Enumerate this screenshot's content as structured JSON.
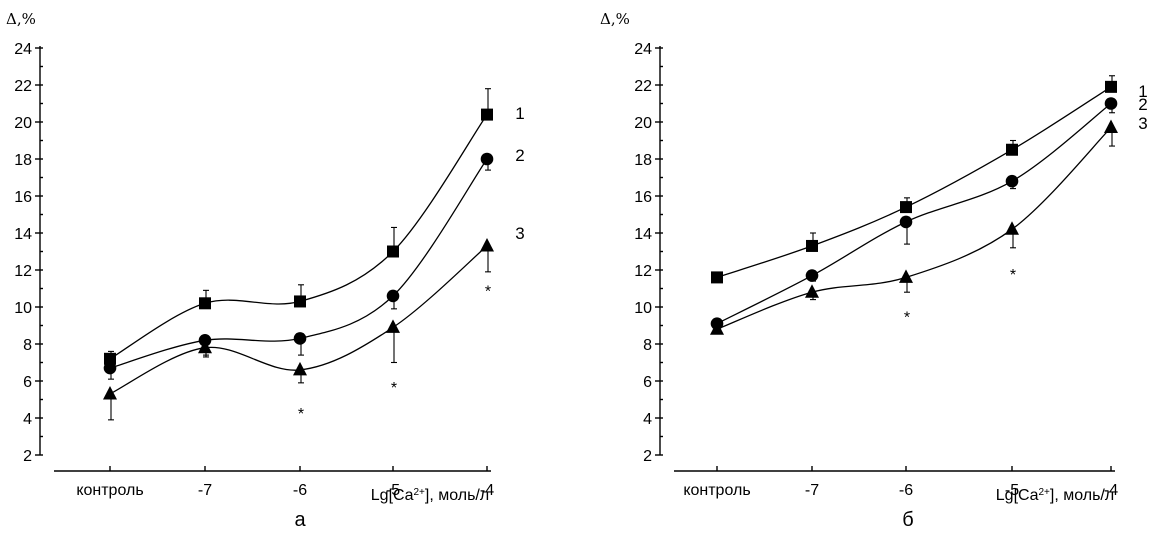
{
  "chart_data": [
    {
      "type": "line",
      "panel_label": "а",
      "ylabel": "Δ,%",
      "xlabel": "Lg[Ca²⁺], моль/л",
      "categories": [
        "контроль",
        "-7",
        "-6",
        "-5",
        "-4"
      ],
      "yticks": [
        2,
        4,
        6,
        8,
        10,
        12,
        14,
        16,
        18,
        20,
        22,
        24
      ],
      "ylim": [
        2,
        24
      ],
      "grid": false,
      "series": [
        {
          "name": "1",
          "marker": "square",
          "values": [
            7.2,
            10.2,
            10.3,
            13.0,
            20.4
          ],
          "errors": [
            0.4,
            0.7,
            0.9,
            1.3,
            1.4
          ]
        },
        {
          "name": "2",
          "marker": "circle",
          "values": [
            6.7,
            8.2,
            8.3,
            10.6,
            18.0
          ],
          "errors": [
            0.6,
            0.8,
            0.9,
            0.7,
            0.6
          ]
        },
        {
          "name": "3",
          "marker": "triangle",
          "values": [
            5.3,
            7.8,
            6.6,
            8.9,
            13.3
          ],
          "errors": [
            1.4,
            0.5,
            0.7,
            1.9,
            1.4
          ]
        }
      ],
      "significance": [
        {
          "category": "-6",
          "label": "*",
          "y": 4.5
        },
        {
          "category": "-5",
          "label": "*",
          "y": 5.9
        },
        {
          "category": "-4",
          "label": "*",
          "y": 11.1
        }
      ]
    },
    {
      "type": "line",
      "panel_label": "б",
      "ylabel": "Δ,%",
      "xlabel": "Lg[Ca²⁺], моль/л",
      "categories": [
        "контроль",
        "-7",
        "-6",
        "-5",
        "-4"
      ],
      "yticks": [
        2,
        4,
        6,
        8,
        10,
        12,
        14,
        16,
        18,
        20,
        22,
        24
      ],
      "ylim": [
        2,
        24
      ],
      "grid": false,
      "series": [
        {
          "name": "1",
          "marker": "square",
          "values": [
            11.6,
            13.3,
            15.4,
            18.5,
            21.9
          ],
          "errors": [
            0.2,
            0.7,
            0.5,
            0.5,
            0.6
          ]
        },
        {
          "name": "2",
          "marker": "circle",
          "values": [
            9.1,
            11.7,
            14.6,
            16.8,
            21.0
          ],
          "errors": [
            0.2,
            0.3,
            1.2,
            0.4,
            0.5
          ]
        },
        {
          "name": "3",
          "marker": "triangle",
          "values": [
            8.8,
            10.8,
            11.6,
            14.2,
            19.7
          ],
          "errors": [
            0.2,
            0.4,
            0.8,
            1.0,
            1.0
          ]
        }
      ],
      "significance": [
        {
          "category": "-6",
          "label": "*",
          "y": 9.7
        },
        {
          "category": "-5",
          "label": "*",
          "y": 12.0
        }
      ]
    }
  ]
}
